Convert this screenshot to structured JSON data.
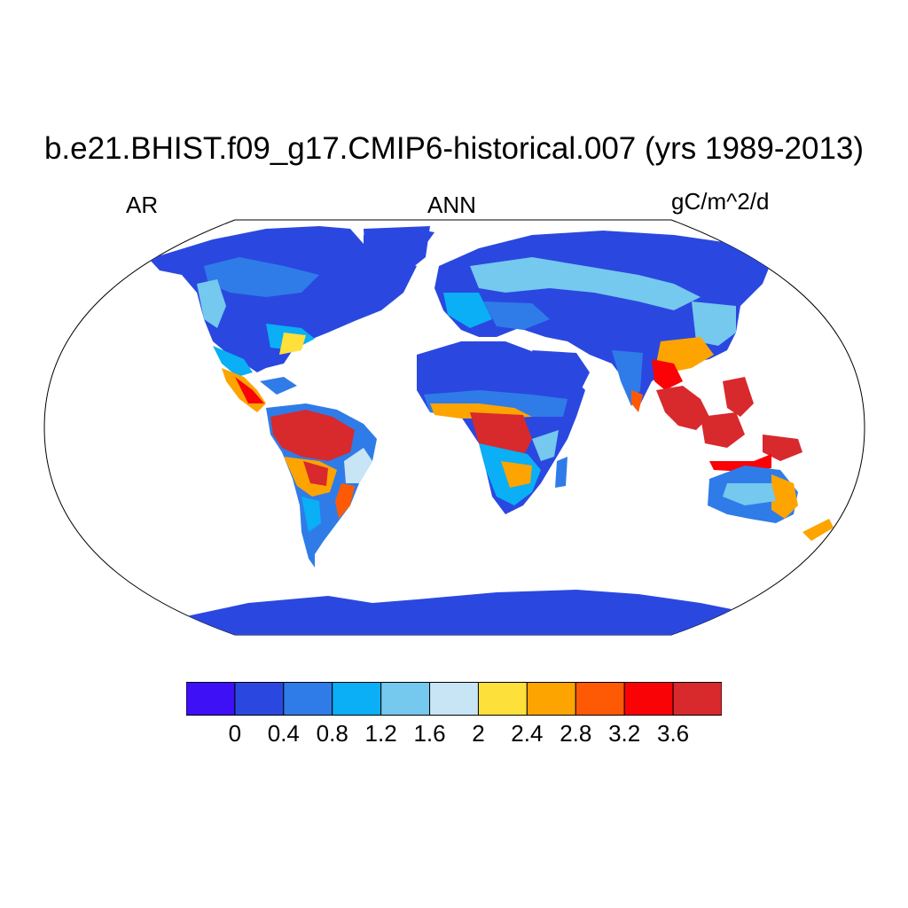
{
  "title": "b.e21.BHIST.f09_g17.CMIP6-historical.007 (yrs 1989-2013)",
  "labels": {
    "variable": "AR",
    "season": "ANN",
    "units": "gC/m^2/d"
  },
  "colorbar": {
    "colors": [
      "#3d10f5",
      "#2a48e0",
      "#2f7ce8",
      "#0aaff5",
      "#75c8ee",
      "#c7e5f5",
      "#fde03a",
      "#fda400",
      "#fe5a05",
      "#f90307",
      "#d8292d"
    ],
    "tick_labels": [
      "0",
      "0.4",
      "0.8",
      "1.2",
      "1.6",
      "2",
      "2.4",
      "2.8",
      "3.2",
      "3.6"
    ]
  }
}
